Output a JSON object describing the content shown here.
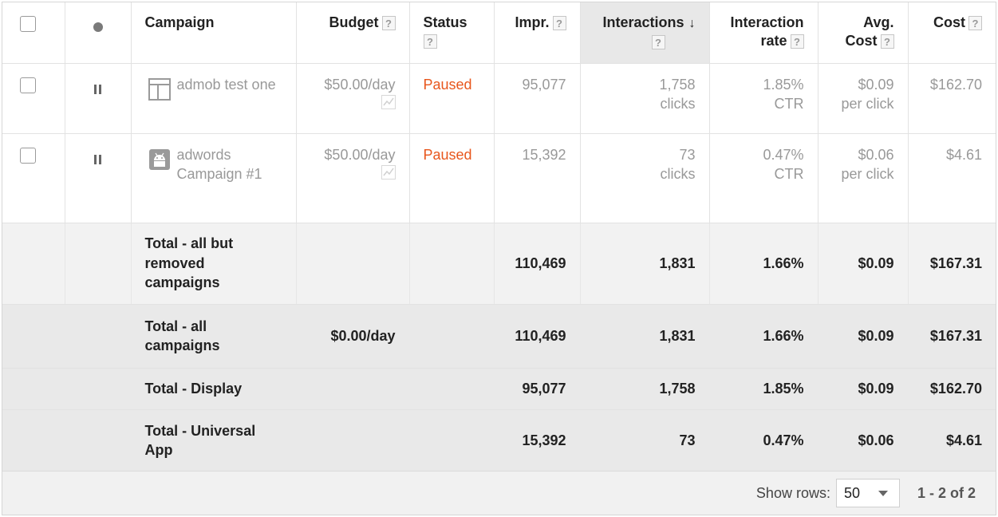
{
  "header": {
    "campaign": "Campaign",
    "budget": "Budget",
    "status": "Status",
    "impr": "Impr.",
    "interactions": "Interactions",
    "sort_arrow": "↓",
    "interaction_rate_line1": "Interaction",
    "interaction_rate_line2": "rate",
    "avg_cost_line1": "Avg.",
    "avg_cost_line2": "Cost",
    "cost": "Cost",
    "help": "?"
  },
  "rows": [
    {
      "name": "admob test one",
      "campaign_icon": "display-icon",
      "budget": "$50.00/day",
      "status": "Paused",
      "impr": "95,077",
      "interactions_value": "1,758",
      "interactions_unit": "clicks",
      "rate_value": "1.85%",
      "rate_unit": "CTR",
      "avg_value": "$0.09",
      "avg_unit": "per click",
      "cost": "$162.70"
    },
    {
      "name": "adwords Campaign #1",
      "campaign_icon": "android-app-icon",
      "budget": "$50.00/day",
      "status": "Paused",
      "impr": "15,392",
      "interactions_value": "73",
      "interactions_unit": "clicks",
      "rate_value": "0.47%",
      "rate_unit": "CTR",
      "avg_value": "$0.06",
      "avg_unit": "per click",
      "cost": "$4.61"
    }
  ],
  "totals": [
    {
      "label": "Total - all but removed campaigns",
      "budget": "",
      "impr": "110,469",
      "interactions": "1,831",
      "rate": "1.66%",
      "avg": "$0.09",
      "cost": "$167.31"
    },
    {
      "label": "Total - all campaigns",
      "budget": "$0.00/day",
      "impr": "110,469",
      "interactions": "1,831",
      "rate": "1.66%",
      "avg": "$0.09",
      "cost": "$167.31"
    },
    {
      "label": "Total - Display",
      "budget": "",
      "impr": "95,077",
      "interactions": "1,758",
      "rate": "1.85%",
      "avg": "$0.09",
      "cost": "$162.70"
    },
    {
      "label": "Total - Universal App",
      "budget": "",
      "impr": "15,392",
      "interactions": "73",
      "rate": "0.47%",
      "avg": "$0.06",
      "cost": "$4.61"
    }
  ],
  "footer": {
    "show_rows_label": "Show rows:",
    "rows_value": "50",
    "range": "1 - 2 of 2"
  },
  "colors": {
    "paused": "#e8561c",
    "sorted_header_bg": "#e8e8e8",
    "muted_text": "#999999"
  }
}
